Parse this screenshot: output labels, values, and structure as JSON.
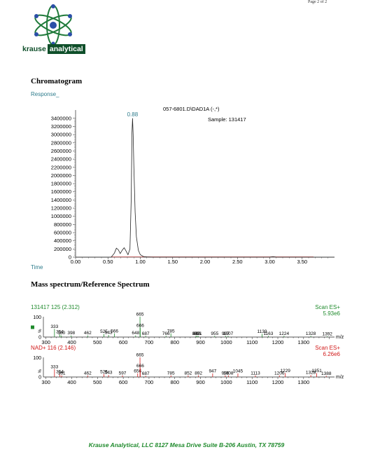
{
  "header": {
    "page_number": "Page 2 of 2",
    "logo": {
      "word1": "krause",
      "word2": "analytical",
      "icon": "atom-logo-icon"
    }
  },
  "chromatogram": {
    "title": "Chromatogram",
    "y_axis_label": "Response_",
    "x_axis_label": "Time",
    "file_label": "057-6801.D\\DAD1A (-,*)",
    "sample_label": "Sample:  131417",
    "peak_label": "0.88",
    "chart_data": {
      "type": "line",
      "xlim": [
        0,
        4.0
      ],
      "ylim": [
        0,
        3500000
      ],
      "x_ticks": [
        0.0,
        0.5,
        1.0,
        1.5,
        2.0,
        2.5,
        3.0,
        3.5
      ],
      "x_tick_labels": [
        "0.00",
        "0.50",
        "1.00",
        "1.50",
        "2.00",
        "2.50",
        "3.00",
        "3.50"
      ],
      "y_ticks": [
        0,
        200000,
        400000,
        600000,
        800000,
        1000000,
        1200000,
        1400000,
        1600000,
        1800000,
        2000000,
        2200000,
        2400000,
        2600000,
        2800000,
        3000000,
        3200000,
        3400000
      ],
      "y_tick_labels": [
        "0",
        "200000",
        "400000",
        "600000",
        "800000",
        "1000000",
        "1200000",
        "1400000",
        "1600000",
        "1800000",
        "2000000",
        "2200000",
        "2400000",
        "2600000",
        "2800000",
        "3000000",
        "3200000",
        "3400000"
      ],
      "series": [
        {
          "x": [
            0.0,
            0.55,
            0.6,
            0.63,
            0.66,
            0.69,
            0.72,
            0.75,
            0.78,
            0.81,
            0.84,
            0.86,
            0.87,
            0.88,
            0.89,
            0.9,
            0.92,
            0.94,
            0.97,
            1.0,
            1.05,
            1.1,
            1.2,
            1.3,
            2.0,
            3.0,
            3.05,
            3.1,
            4.0
          ],
          "y": [
            0,
            0,
            100000,
            220000,
            180000,
            90000,
            170000,
            230000,
            150000,
            60000,
            200000,
            1500000,
            3000000,
            3400000,
            3000000,
            2200000,
            1100000,
            500000,
            170000,
            60000,
            15000,
            5000,
            0,
            0,
            0,
            0,
            15000,
            0,
            0
          ],
          "color": "#222222"
        }
      ]
    }
  },
  "mass_spectrum": {
    "title": "Mass spectrum/Reference Spectrum",
    "x_unit": "m/z",
    "x_ticks": [
      300,
      400,
      500,
      600,
      700,
      800,
      900,
      1000,
      1100,
      1200,
      1300
    ],
    "chart_data": [
      {
        "type": "bar",
        "header_left": "131417 125 (2.312)",
        "header_right": "Scan ES+",
        "max_label": "5.93e6",
        "y_top_label": "100",
        "y_zero_label": "0",
        "y_pct_label": "%",
        "color": "#1f8a2c",
        "legend_color": "#1f8a2c",
        "peaks": [
          {
            "mz": 333,
            "i": 40,
            "label": "333"
          },
          {
            "mz": 354,
            "i": 14,
            "label": "354"
          },
          {
            "mz": 360,
            "i": 8,
            "label": "360"
          },
          {
            "mz": 398,
            "i": 8,
            "label": "398"
          },
          {
            "mz": 462,
            "i": 8,
            "label": "462"
          },
          {
            "mz": 525,
            "i": 15,
            "label": "525"
          },
          {
            "mz": 543,
            "i": 10,
            "label": "543"
          },
          {
            "mz": 566,
            "i": 18,
            "label": "566"
          },
          {
            "mz": 648,
            "i": 8,
            "label": "648"
          },
          {
            "mz": 665,
            "i": 100,
            "label": "665"
          },
          {
            "mz": 666,
            "i": 45,
            "label": "666"
          },
          {
            "mz": 687,
            "i": 6,
            "label": "687"
          },
          {
            "mz": 766,
            "i": 6,
            "label": "766"
          },
          {
            "mz": 785,
            "i": 18,
            "label": "785"
          },
          {
            "mz": 882,
            "i": 6,
            "label": "882"
          },
          {
            "mz": 886,
            "i": 6,
            "label": "886"
          },
          {
            "mz": 891,
            "i": 6,
            "label": "891"
          },
          {
            "mz": 955,
            "i": 6,
            "label": "955"
          },
          {
            "mz": 997,
            "i": 6,
            "label": "997"
          },
          {
            "mz": 1007,
            "i": 6,
            "label": "1007"
          },
          {
            "mz": 1139,
            "i": 16,
            "label": "1139"
          },
          {
            "mz": 1163,
            "i": 6,
            "label": "1163"
          },
          {
            "mz": 1224,
            "i": 6,
            "label": "1224"
          },
          {
            "mz": 1328,
            "i": 6,
            "label": "1328"
          },
          {
            "mz": 1392,
            "i": 4,
            "label": "1392"
          }
        ]
      },
      {
        "type": "bar",
        "header_left": "NAD+ 116 (2.146)",
        "header_right": "Scan ES+",
        "max_label": "6.26e6",
        "y_top_label": "100",
        "y_zero_label": "0",
        "y_pct_label": "%",
        "color": "#d11a1a",
        "peaks": [
          {
            "mz": 333,
            "i": 40,
            "label": "333"
          },
          {
            "mz": 354,
            "i": 14,
            "label": "354"
          },
          {
            "mz": 361,
            "i": 8,
            "label": "361"
          },
          {
            "mz": 462,
            "i": 8,
            "label": "462"
          },
          {
            "mz": 525,
            "i": 15,
            "label": "525"
          },
          {
            "mz": 543,
            "i": 10,
            "label": "543"
          },
          {
            "mz": 597,
            "i": 8,
            "label": "597"
          },
          {
            "mz": 656,
            "i": 18,
            "label": "656"
          },
          {
            "mz": 665,
            "i": 100,
            "label": "665"
          },
          {
            "mz": 666,
            "i": 45,
            "label": "666"
          },
          {
            "mz": 687,
            "i": 6,
            "label": "687"
          },
          {
            "mz": 785,
            "i": 8,
            "label": "785"
          },
          {
            "mz": 852,
            "i": 8,
            "label": "852"
          },
          {
            "mz": 892,
            "i": 8,
            "label": "892"
          },
          {
            "mz": 947,
            "i": 18,
            "label": "947"
          },
          {
            "mz": 996,
            "i": 8,
            "label": "996"
          },
          {
            "mz": 1008,
            "i": 8,
            "label": "1008"
          },
          {
            "mz": 1045,
            "i": 18,
            "label": "1045"
          },
          {
            "mz": 1113,
            "i": 8,
            "label": "1113"
          },
          {
            "mz": 1206,
            "i": 8,
            "label": "1206"
          },
          {
            "mz": 1229,
            "i": 20,
            "label": "1229"
          },
          {
            "mz": 1328,
            "i": 10,
            "label": "1328"
          },
          {
            "mz": 1351,
            "i": 20,
            "label": "1351"
          },
          {
            "mz": 1388,
            "i": 6,
            "label": "1388"
          }
        ]
      }
    ]
  },
  "footer": {
    "text": "Krause Analytical, LLC   8127 Mesa Drive  Suite B-206   Austin, TX 78759"
  }
}
